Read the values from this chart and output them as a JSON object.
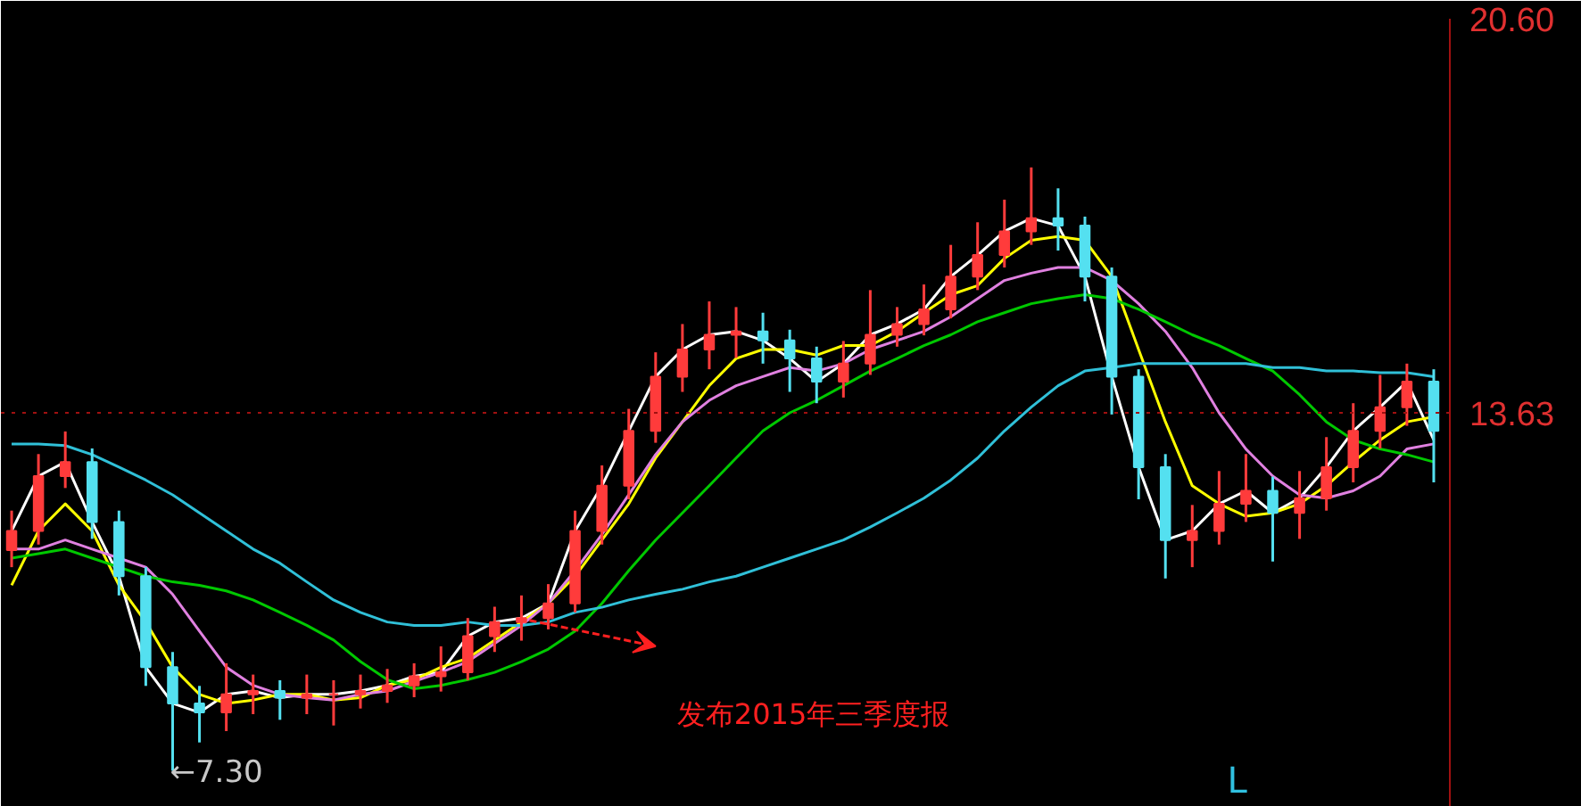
{
  "chart_data": {
    "type": "candlestick",
    "categories": [
      null,
      null,
      null,
      null,
      null,
      null,
      null,
      null,
      null,
      null,
      null,
      null,
      null,
      null,
      null,
      null,
      null,
      null,
      null,
      null,
      null,
      null,
      null,
      null,
      null,
      null,
      null,
      null,
      null,
      null,
      null,
      null,
      null,
      null,
      null,
      null,
      null,
      null,
      null,
      null,
      null,
      null,
      null,
      null,
      null,
      null,
      null,
      null,
      null,
      null,
      null,
      null,
      null,
      null
    ],
    "ohlc": [
      [
        11.2,
        11.9,
        10.9,
        11.54
      ],
      [
        11.54,
        12.9,
        11.3,
        12.51
      ],
      [
        12.51,
        13.3,
        12.3,
        12.76
      ],
      [
        12.76,
        13.0,
        11.4,
        11.7
      ],
      [
        11.7,
        11.9,
        10.4,
        10.74
      ],
      [
        10.74,
        10.9,
        8.8,
        9.13
      ],
      [
        9.13,
        9.4,
        7.3,
        8.49
      ],
      [
        8.49,
        8.8,
        7.8,
        8.33
      ],
      [
        8.33,
        9.2,
        8.0,
        8.65
      ],
      [
        8.65,
        9.0,
        8.3,
        8.71
      ],
      [
        8.71,
        8.9,
        8.2,
        8.59
      ],
      [
        8.59,
        9.0,
        8.3,
        8.65
      ],
      [
        8.65,
        8.9,
        8.1,
        8.65
      ],
      [
        8.65,
        9.0,
        8.4,
        8.71
      ],
      [
        8.71,
        9.1,
        8.5,
        8.81
      ],
      [
        8.81,
        9.2,
        8.6,
        8.97
      ],
      [
        8.97,
        9.5,
        8.7,
        9.04
      ],
      [
        9.04,
        10.0,
        8.9,
        9.68
      ],
      [
        9.68,
        10.2,
        9.4,
        9.93
      ],
      [
        9.93,
        10.4,
        9.6,
        10.0
      ],
      [
        10.0,
        10.6,
        9.8,
        10.26
      ],
      [
        10.26,
        11.9,
        10.1,
        11.54
      ],
      [
        11.54,
        12.7,
        11.3,
        12.34
      ],
      [
        12.34,
        13.7,
        12.1,
        13.31
      ],
      [
        13.31,
        14.7,
        13.1,
        14.27
      ],
      [
        14.27,
        15.2,
        14.0,
        14.75
      ],
      [
        14.75,
        15.6,
        14.4,
        15.01
      ],
      [
        15.01,
        15.5,
        14.6,
        15.07
      ],
      [
        15.07,
        15.4,
        14.5,
        14.91
      ],
      [
        14.91,
        15.1,
        14.0,
        14.59
      ],
      [
        14.59,
        14.8,
        13.8,
        14.18
      ],
      [
        14.18,
        14.9,
        13.9,
        14.5
      ],
      [
        14.5,
        15.8,
        14.3,
        15.01
      ],
      [
        15.01,
        15.5,
        14.8,
        15.2
      ],
      [
        15.2,
        15.9,
        15.0,
        15.46
      ],
      [
        15.46,
        16.6,
        15.3,
        16.04
      ],
      [
        16.04,
        17.0,
        15.8,
        16.42
      ],
      [
        16.42,
        17.4,
        16.2,
        16.84
      ],
      [
        16.84,
        17.97,
        16.6,
        17.07
      ],
      [
        17.07,
        17.6,
        16.5,
        16.94
      ],
      [
        16.94,
        17.1,
        15.6,
        16.04
      ],
      [
        16.04,
        16.2,
        13.6,
        14.27
      ],
      [
        14.27,
        14.4,
        12.1,
        12.67
      ],
      [
        12.67,
        12.9,
        10.7,
        11.38
      ],
      [
        11.38,
        12.0,
        10.9,
        11.54
      ],
      [
        11.54,
        12.6,
        11.3,
        12.02
      ],
      [
        12.02,
        12.9,
        11.7,
        12.25
      ],
      [
        12.25,
        12.5,
        11.0,
        11.86
      ],
      [
        11.86,
        12.6,
        11.4,
        12.12
      ],
      [
        12.12,
        13.2,
        11.9,
        12.67
      ],
      [
        12.67,
        13.8,
        12.4,
        13.31
      ],
      [
        13.31,
        14.3,
        13.0,
        13.73
      ],
      [
        13.73,
        14.5,
        13.4,
        14.18
      ],
      [
        14.18,
        14.4,
        12.4,
        13.31
      ]
    ],
    "colors": [
      "#ff3b3b",
      "#ff3b3b",
      "#ff3b3b",
      "#54e0f0",
      "#54e0f0",
      "#54e0f0",
      "#54e0f0",
      "#54e0f0",
      "#ff3b3b",
      "#ff3b3b",
      "#54e0f0",
      "#ff3b3b",
      "#ff3b3b",
      "#ff3b3b",
      "#ff3b3b",
      "#ff3b3b",
      "#ff3b3b",
      "#ff3b3b",
      "#ff3b3b",
      "#ff3b3b",
      "#ff3b3b",
      "#ff3b3b",
      "#ff3b3b",
      "#ff3b3b",
      "#ff3b3b",
      "#ff3b3b",
      "#ff3b3b",
      "#ff3b3b",
      "#54e0f0",
      "#54e0f0",
      "#54e0f0",
      "#ff3b3b",
      "#ff3b3b",
      "#ff3b3b",
      "#ff3b3b",
      "#ff3b3b",
      "#ff3b3b",
      "#ff3b3b",
      "#ff3b3b",
      "#54e0f0",
      "#54e0f0",
      "#54e0f0",
      "#54e0f0",
      "#54e0f0",
      "#ff3b3b",
      "#ff3b3b",
      "#ff3b3b",
      "#54e0f0",
      "#ff3b3b",
      "#ff3b3b",
      "#ff3b3b",
      "#ff3b3b",
      "#ff3b3b",
      "#54e0f0"
    ],
    "series": [
      {
        "type": "line",
        "color": "#ffffff",
        "values": [
          11.54,
          12.51,
          12.76,
          11.7,
          10.74,
          9.13,
          8.49,
          8.33,
          8.65,
          8.71,
          8.59,
          8.65,
          8.65,
          8.71,
          8.81,
          8.97,
          9.04,
          9.68,
          9.93,
          10.0,
          10.26,
          11.54,
          12.34,
          13.31,
          14.27,
          14.75,
          15.01,
          15.07,
          14.91,
          14.59,
          14.18,
          14.5,
          15.01,
          15.2,
          15.46,
          16.04,
          16.42,
          16.84,
          17.07,
          16.94,
          16.04,
          14.27,
          12.67,
          11.38,
          11.54,
          12.02,
          12.25,
          11.86,
          12.12,
          12.67,
          13.31,
          13.73,
          14.18,
          13.15
        ]
      },
      {
        "type": "line",
        "color": "#ffff00",
        "values": [
          10.58,
          11.54,
          12.02,
          11.54,
          10.58,
          9.93,
          9.13,
          8.65,
          8.49,
          8.55,
          8.65,
          8.65,
          8.55,
          8.59,
          8.81,
          8.91,
          9.13,
          9.29,
          9.61,
          9.93,
          10.26,
          10.74,
          11.38,
          12.02,
          12.83,
          13.47,
          14.11,
          14.59,
          14.75,
          14.75,
          14.65,
          14.82,
          14.82,
          15.07,
          15.4,
          15.72,
          15.88,
          16.36,
          16.68,
          16.75,
          16.68,
          16.04,
          14.75,
          13.47,
          12.34,
          12.02,
          11.8,
          11.86,
          12.02,
          12.34,
          12.76,
          13.15,
          13.47,
          13.56
        ]
      },
      {
        "type": "line",
        "color": "#e080e0",
        "values": [
          11.22,
          11.22,
          11.38,
          11.22,
          11.06,
          10.9,
          10.42,
          9.77,
          9.13,
          8.81,
          8.65,
          8.59,
          8.55,
          8.65,
          8.71,
          8.88,
          9.04,
          9.23,
          9.55,
          9.87,
          10.26,
          10.84,
          11.48,
          12.18,
          12.89,
          13.47,
          13.85,
          14.11,
          14.27,
          14.43,
          14.37,
          14.5,
          14.75,
          14.91,
          15.07,
          15.33,
          15.65,
          15.97,
          16.1,
          16.2,
          16.2,
          15.97,
          15.56,
          15.07,
          14.43,
          13.63,
          12.99,
          12.51,
          12.18,
          12.12,
          12.25,
          12.51,
          12.99,
          13.08
        ]
      },
      {
        "type": "line",
        "color": "#00c800",
        "values": [
          11.06,
          11.14,
          11.22,
          11.06,
          10.9,
          10.74,
          10.64,
          10.58,
          10.48,
          10.32,
          10.1,
          9.87,
          9.61,
          9.23,
          8.91,
          8.75,
          8.81,
          8.91,
          9.04,
          9.23,
          9.45,
          9.77,
          10.26,
          10.84,
          11.38,
          11.86,
          12.34,
          12.83,
          13.31,
          13.63,
          13.85,
          14.11,
          14.37,
          14.59,
          14.82,
          15.01,
          15.24,
          15.4,
          15.56,
          15.65,
          15.72,
          15.65,
          15.46,
          15.24,
          15.01,
          14.82,
          14.59,
          14.37,
          13.95,
          13.47,
          13.15,
          12.99,
          12.89,
          12.76
        ]
      },
      {
        "type": "line",
        "color": "#30c0d8",
        "values": [
          13.08,
          13.08,
          13.05,
          12.89,
          12.67,
          12.44,
          12.18,
          11.86,
          11.54,
          11.22,
          10.97,
          10.64,
          10.32,
          10.1,
          9.93,
          9.87,
          9.87,
          9.93,
          9.87,
          9.87,
          9.93,
          10.1,
          10.19,
          10.32,
          10.42,
          10.51,
          10.64,
          10.74,
          10.9,
          11.06,
          11.22,
          11.38,
          11.61,
          11.86,
          12.12,
          12.44,
          12.83,
          13.31,
          13.73,
          14.11,
          14.37,
          14.43,
          14.5,
          14.5,
          14.5,
          14.5,
          14.5,
          14.43,
          14.43,
          14.37,
          14.37,
          14.34,
          14.34,
          14.27
        ]
      }
    ],
    "ylim": [
      6.66,
      20.6
    ],
    "yticks": [
      {
        "value": 20.6,
        "label": "20.60"
      },
      13.63
    ],
    "tick_labels": "y",
    "ref_lines": [
      {
        "axis": "y",
        "value": 13.63,
        "color": "#a01010",
        "line_style": "dotted"
      }
    ],
    "annotations": [
      "发布2015年三季度报",
      "L",
      "←7.30"
    ],
    "grid": false
  }
}
